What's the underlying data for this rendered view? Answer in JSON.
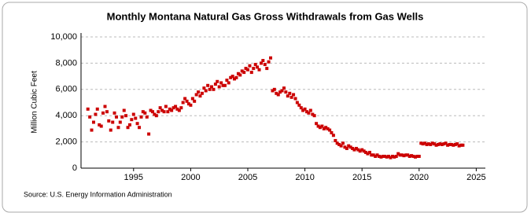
{
  "chart_data": {
    "type": "scatter",
    "title": "Monthly Montana Natural Gas Gross Withdrawals from Gas Wells",
    "y_label": "Million Cubic Feet",
    "source": "Source: U.S. Energy Information Administration",
    "color": "#cc0000",
    "grid": true,
    "xlim": [
      1990.4,
      2025.8
    ],
    "xticks": [
      1995,
      2000,
      2005,
      2010,
      2015,
      2020,
      2025
    ],
    "ylim": [
      0,
      10000
    ],
    "yticks": [
      0,
      {
        "value": 2000,
        "label": "2,000"
      },
      {
        "value": 4000,
        "label": "4,000"
      },
      {
        "value": 6000,
        "label": "6,000"
      },
      {
        "value": 8000,
        "label": "8,000"
      },
      {
        "value": 10000,
        "label": "10,000"
      }
    ],
    "x": [
      1991,
      1991.17,
      1991.33,
      1991.5,
      1991.67,
      1991.83,
      1992,
      1992.17,
      1992.33,
      1992.5,
      1992.67,
      1992.83,
      1993,
      1993.17,
      1993.33,
      1993.5,
      1993.67,
      1993.83,
      1994,
      1994.17,
      1994.33,
      1994.5,
      1994.67,
      1994.83,
      1995,
      1995.17,
      1995.33,
      1995.5,
      1995.67,
      1995.83,
      1996,
      1996.17,
      1996.33,
      1996.5,
      1996.67,
      1996.83,
      1997,
      1997.17,
      1997.33,
      1997.5,
      1997.67,
      1997.83,
      1998,
      1998.17,
      1998.33,
      1998.5,
      1998.67,
      1998.83,
      1999,
      1999.17,
      1999.33,
      1999.5,
      1999.67,
      1999.83,
      2000,
      2000.17,
      2000.33,
      2000.5,
      2000.67,
      2000.83,
      2001,
      2001.17,
      2001.33,
      2001.5,
      2001.67,
      2001.83,
      2002,
      2002.17,
      2002.33,
      2002.5,
      2002.67,
      2002.83,
      2003,
      2003.17,
      2003.33,
      2003.5,
      2003.67,
      2003.83,
      2004,
      2004.17,
      2004.33,
      2004.5,
      2004.67,
      2004.83,
      2005,
      2005.17,
      2005.33,
      2005.5,
      2005.67,
      2005.83,
      2006,
      2006.17,
      2006.33,
      2006.5,
      2006.67,
      2006.83,
      2007,
      2007.17,
      2007.33,
      2007.5,
      2007.67,
      2007.83,
      2008,
      2008.17,
      2008.33,
      2008.5,
      2008.67,
      2008.83,
      2009,
      2009.17,
      2009.33,
      2009.5,
      2009.67,
      2009.83,
      2010,
      2010.17,
      2010.33,
      2010.5,
      2010.67,
      2010.83,
      2011,
      2011.17,
      2011.33,
      2011.5,
      2011.67,
      2011.83,
      2012,
      2012.17,
      2012.33,
      2012.5,
      2012.67,
      2012.83,
      2013,
      2013.17,
      2013.33,
      2013.5,
      2013.67,
      2013.83,
      2014,
      2014.17,
      2014.33,
      2014.5,
      2014.67,
      2014.83,
      2015,
      2015.17,
      2015.33,
      2015.5,
      2015.67,
      2015.83,
      2016,
      2016.17,
      2016.33,
      2016.5,
      2016.67,
      2016.83,
      2017,
      2017.17,
      2017.33,
      2017.5,
      2017.67,
      2017.83,
      2018,
      2018.17,
      2018.33,
      2018.5,
      2018.67,
      2018.83,
      2019,
      2019.17,
      2019.33,
      2019.5,
      2019.67,
      2019.83,
      2020,
      2020.17,
      2020.33,
      2020.5,
      2020.67,
      2020.83,
      2021,
      2021.17,
      2021.33,
      2021.5,
      2021.67,
      2021.83,
      2022,
      2022.17,
      2022.33,
      2022.5,
      2022.67,
      2022.83,
      2023,
      2023.17,
      2023.33,
      2023.5,
      2023.67,
      2023.83
    ],
    "values": [
      4500,
      3900,
      2900,
      3500,
      4100,
      4500,
      3300,
      3200,
      4200,
      4700,
      4300,
      3600,
      2900,
      3500,
      4200,
      3900,
      3100,
      3500,
      3900,
      4400,
      4000,
      3100,
      3300,
      3700,
      4100,
      3800,
      3400,
      3100,
      3900,
      4300,
      4200,
      3900,
      2600,
      4400,
      4300,
      4100,
      4000,
      4300,
      4600,
      4400,
      4300,
      4700,
      4300,
      4500,
      4400,
      4600,
      4700,
      4500,
      4400,
      4600,
      5000,
      5300,
      5100,
      4900,
      4800,
      5300,
      5100,
      5600,
      5800,
      5500,
      5700,
      6100,
      5900,
      6300,
      6000,
      6200,
      6000,
      6400,
      6600,
      6200,
      6500,
      6300,
      6300,
      6700,
      6500,
      6900,
      7000,
      6800,
      6900,
      7200,
      7100,
      7400,
      7300,
      7600,
      7500,
      7800,
      7300,
      7600,
      7900,
      7700,
      7500,
      8000,
      8200,
      7900,
      7600,
      8100,
      8400,
      5900,
      6000,
      5700,
      5600,
      5800,
      5900,
      6100,
      5800,
      5500,
      5700,
      5400,
      5600,
      5300,
      5000,
      4800,
      4600,
      4400,
      4500,
      4300,
      4200,
      4400,
      4100,
      4000,
      3400,
      3200,
      3100,
      3200,
      3000,
      3100,
      3000,
      2900,
      2700,
      2500,
      2100,
      1900,
      1800,
      1700,
      1900,
      1600,
      1500,
      1700,
      1600,
      1500,
      1400,
      1500,
      1400,
      1300,
      1400,
      1300,
      1200,
      1100,
      1200,
      1000,
      1000,
      900,
      1000,
      900,
      850,
      900,
      900,
      850,
      900,
      800,
      900,
      850,
      900,
      1100,
      1000,
      1000,
      950,
      1000,
      1000,
      900,
      950,
      900,
      850,
      900,
      900,
      1900,
      1850,
      1900,
      1800,
      1850,
      1800,
      1900,
      1850,
      1750,
      1800,
      1850,
      1800,
      1850,
      1900,
      1750,
      1800,
      1800,
      1750,
      1800,
      1850,
      1700,
      1750,
      1750
    ]
  }
}
